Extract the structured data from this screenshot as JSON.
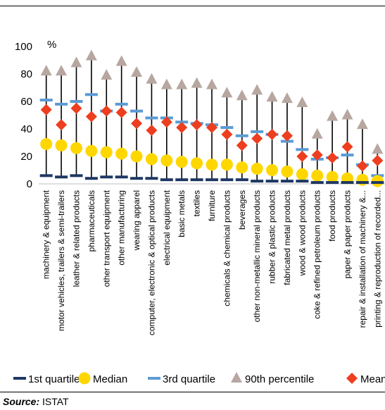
{
  "source": {
    "label": "Source:",
    "text": "ISTAT"
  },
  "chart_data": {
    "type": "scatter",
    "title": "",
    "xlabel": "",
    "ylabel": "%",
    "ylim": [
      0,
      100
    ],
    "yticks": [
      0,
      20,
      40,
      60,
      80,
      100
    ],
    "grid": false,
    "legend_position": "bottom",
    "categories": [
      "machinery & equipment",
      "motor vehicles, trailers & semi-trailers",
      "leather & related products",
      "pharmaceuticals",
      "other transport equipment",
      "other manufacturing",
      "wearing apparel",
      "computer, electronic & optical products",
      "electrical equipment",
      "basic metals",
      "textiles",
      "furniture",
      "chemicals & chemical products",
      "beverages",
      "other non-metallic mineral products",
      "rubber & plastic products",
      "fabricated metal products",
      "wood & wood products",
      "coke & refined petroleum products",
      "food products",
      "paper & paper products",
      "repair & installation of machinery &...",
      "printing & reproduction of recorded..."
    ],
    "series": [
      {
        "name": "1st quartile",
        "marker": "dash",
        "color": "#1f3864",
        "values": [
          6,
          5,
          6,
          4,
          5,
          5,
          4,
          4,
          3,
          3,
          3,
          3,
          3,
          3,
          2,
          2,
          2,
          2,
          1,
          1,
          1,
          1,
          1
        ]
      },
      {
        "name": "Median",
        "marker": "circle",
        "color": "#ffd700",
        "values": [
          29,
          28,
          26,
          24,
          23,
          22,
          20,
          18,
          17,
          16,
          15,
          14,
          14,
          12,
          11,
          10,
          9,
          7,
          6,
          5,
          4,
          3,
          2
        ]
      },
      {
        "name": "3rd quartile",
        "marker": "dash",
        "color": "#5b9bd5",
        "values": [
          61,
          58,
          60,
          65,
          53,
          58,
          53,
          48,
          48,
          45,
          44,
          43,
          41,
          35,
          38,
          36,
          31,
          25,
          18,
          19,
          21,
          14,
          6
        ]
      },
      {
        "name": "90th percentile",
        "marker": "triangle",
        "color": "#b7a7a0",
        "values": [
          82,
          82,
          88,
          93,
          79,
          89,
          81,
          76,
          72,
          72,
          73,
          72,
          66,
          64,
          68,
          63,
          62,
          59,
          36,
          49,
          50,
          43,
          25
        ]
      },
      {
        "name": "Mean",
        "marker": "diamond",
        "color": "#ed3e1f",
        "values": [
          54,
          43,
          55,
          49,
          53,
          52,
          44,
          39,
          45,
          41,
          43,
          41,
          36,
          28,
          33,
          36,
          35,
          20,
          21,
          19,
          27,
          13,
          17
        ]
      }
    ]
  }
}
